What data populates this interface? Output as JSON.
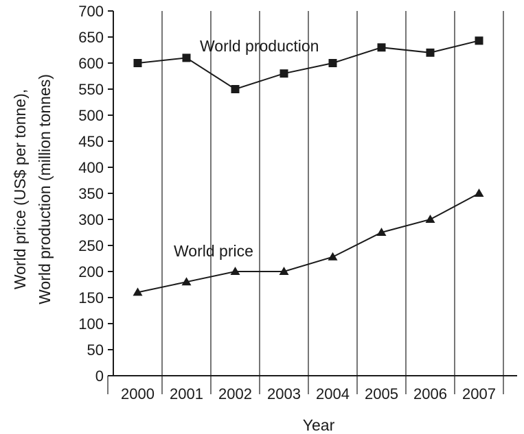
{
  "chart_data": {
    "type": "line",
    "xlabel": "Year",
    "ylabel_line1": "World price (US$ per tonne),",
    "ylabel_line2": "World production (million tonnes)",
    "categories": [
      "2000",
      "2001",
      "2002",
      "2003",
      "2004",
      "2005",
      "2006",
      "2007"
    ],
    "ylim": [
      0,
      700
    ],
    "yticks": [
      0,
      50,
      100,
      150,
      200,
      250,
      300,
      350,
      400,
      450,
      500,
      550,
      600,
      650,
      700
    ],
    "grid": "vertical",
    "series": [
      {
        "name": "World production",
        "marker": "square",
        "values": [
          600,
          610,
          550,
          580,
          600,
          630,
          620,
          643
        ]
      },
      {
        "name": "World price",
        "marker": "triangle",
        "values": [
          160,
          180,
          200,
          200,
          228,
          275,
          300,
          350
        ]
      }
    ]
  }
}
